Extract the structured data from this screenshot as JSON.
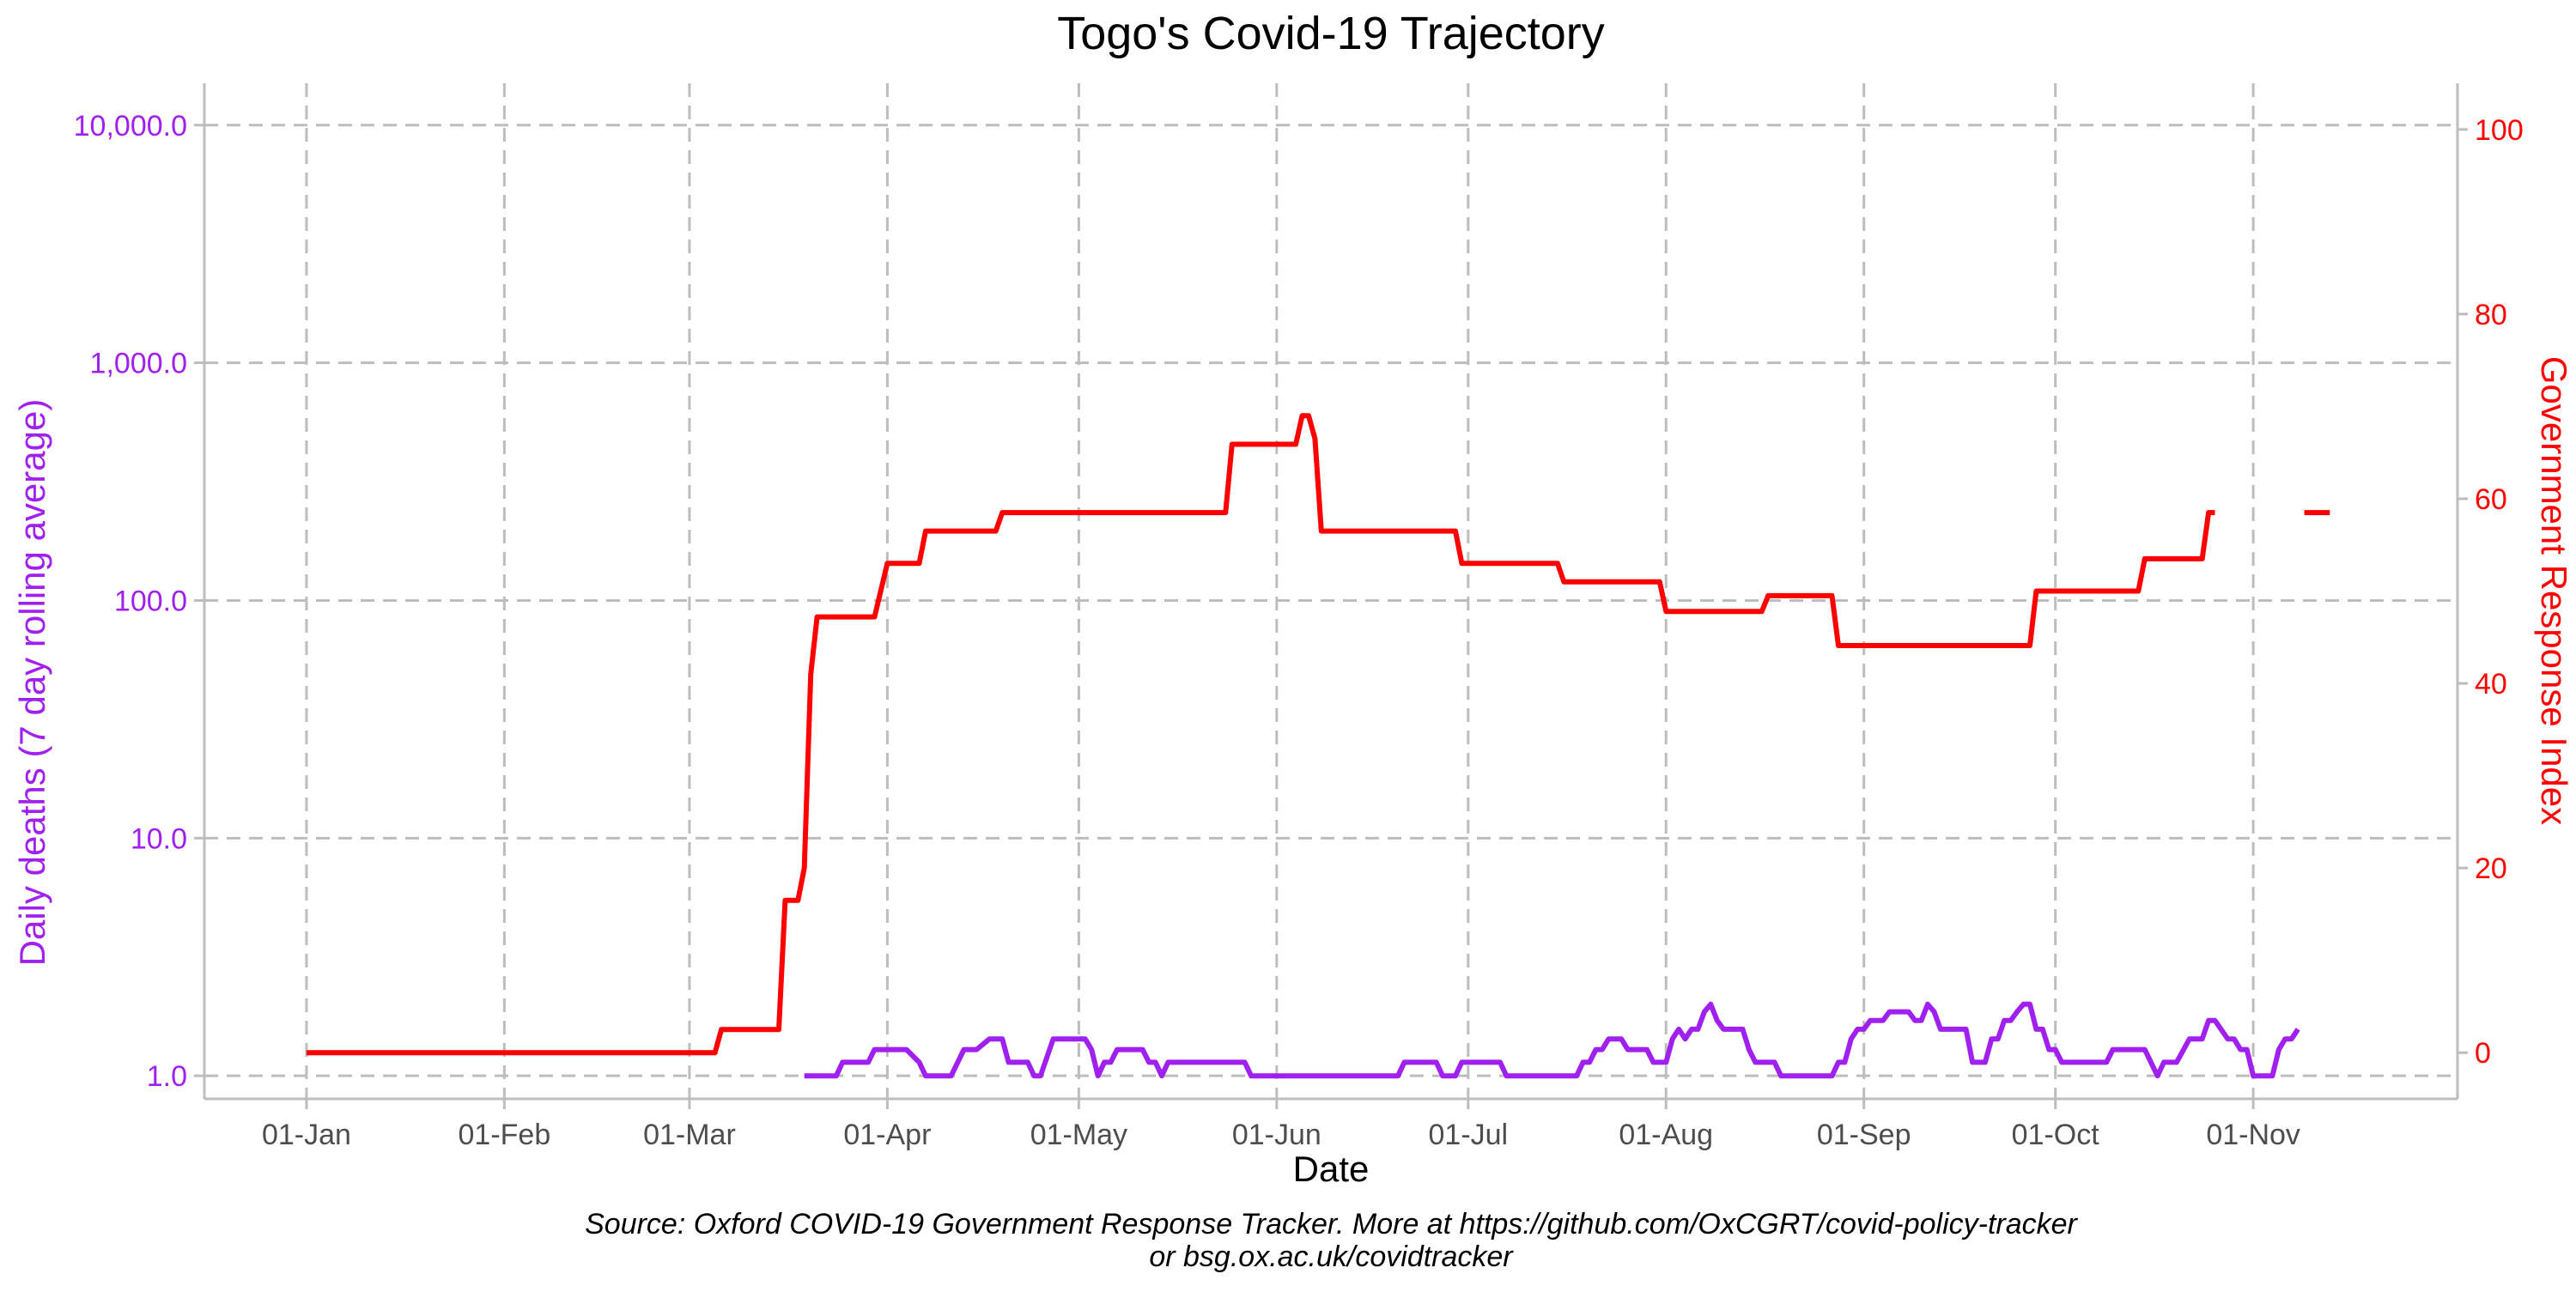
{
  "title": "Togo's Covid-19 Trajectory",
  "xlabel": "Date",
  "ylabel_left": "Daily deaths (7 day rolling average)",
  "ylabel_right": "Government Response Index",
  "caption_line1": "Source: Oxford COVID-19 Government Response Tracker. More at https://github.com/OxCGRT/covid-policy-tracker",
  "caption_line2": "or bsg.ox.ac.uk/covidtracker",
  "colors": {
    "deaths": "#a020f0",
    "stringency": "#ff0000",
    "grid": "#bdbdbd",
    "axis": "#bdbdbd"
  },
  "chart_data": {
    "type": "line",
    "title": "Togo's Covid-19 Trajectory",
    "xlabel": "Date",
    "x_ticks": [
      {
        "date": "2020-01-01",
        "label": "01-Jan"
      },
      {
        "date": "2020-02-01",
        "label": "01-Feb"
      },
      {
        "date": "2020-03-01",
        "label": "01-Mar"
      },
      {
        "date": "2020-04-01",
        "label": "01-Apr"
      },
      {
        "date": "2020-05-01",
        "label": "01-May"
      },
      {
        "date": "2020-06-01",
        "label": "01-Jun"
      },
      {
        "date": "2020-07-01",
        "label": "01-Jul"
      },
      {
        "date": "2020-08-01",
        "label": "01-Aug"
      },
      {
        "date": "2020-09-01",
        "label": "01-Sep"
      },
      {
        "date": "2020-10-01",
        "label": "01-Oct"
      },
      {
        "date": "2020-11-01",
        "label": "01-Nov"
      }
    ],
    "xlim": [
      "2019-12-16",
      "2020-12-03"
    ],
    "y_left": {
      "label": "Daily deaths (7 day rolling average)",
      "scale": "log",
      "lim": [
        0.8,
        15000
      ],
      "ticks": [
        {
          "value": 1,
          "label": "1.0"
        },
        {
          "value": 10,
          "label": "10.0"
        },
        {
          "value": 100,
          "label": "100.0"
        },
        {
          "value": 1000,
          "label": "1,000.0"
        },
        {
          "value": 10000,
          "label": "10,000.0"
        }
      ]
    },
    "y_right": {
      "label": "Government Response Index",
      "scale": "linear",
      "lim": [
        -5,
        105
      ],
      "ticks": [
        {
          "value": 0,
          "label": "0"
        },
        {
          "value": 20,
          "label": "20"
        },
        {
          "value": 40,
          "label": "40"
        },
        {
          "value": 60,
          "label": "60"
        },
        {
          "value": 80,
          "label": "80"
        },
        {
          "value": 100,
          "label": "100"
        }
      ]
    },
    "grid": true,
    "series": [
      {
        "axis": "right",
        "color": "#ff0000",
        "segments": [
          [
            [
              "2020-01-01",
              0
            ],
            [
              "2020-03-05",
              0
            ],
            [
              "2020-03-06",
              2.5
            ],
            [
              "2020-03-15",
              2.5
            ],
            [
              "2020-03-16",
              16.5
            ],
            [
              "2020-03-18",
              16.5
            ],
            [
              "2020-03-19",
              20
            ],
            [
              "2020-03-20",
              41
            ],
            [
              "2020-03-21",
              47.2
            ],
            [
              "2020-03-30",
              47.2
            ],
            [
              "2020-04-01",
              53
            ],
            [
              "2020-04-06",
              53
            ],
            [
              "2020-04-07",
              56.5
            ],
            [
              "2020-04-18",
              56.5
            ],
            [
              "2020-04-19",
              58.5
            ],
            [
              "2020-05-24",
              58.5
            ],
            [
              "2020-05-25",
              65.9
            ],
            [
              "2020-06-04",
              65.9
            ],
            [
              "2020-06-05",
              69
            ],
            [
              "2020-06-06",
              69
            ],
            [
              "2020-06-07",
              66.5
            ],
            [
              "2020-06-08",
              56.5
            ],
            [
              "2020-06-29",
              56.5
            ],
            [
              "2020-06-30",
              53
            ],
            [
              "2020-07-15",
              53
            ],
            [
              "2020-07-16",
              51
            ],
            [
              "2020-07-31",
              51
            ],
            [
              "2020-08-01",
              47.8
            ],
            [
              "2020-08-16",
              47.8
            ],
            [
              "2020-08-17",
              49.5
            ],
            [
              "2020-08-27",
              49.5
            ],
            [
              "2020-08-28",
              44.1
            ],
            [
              "2020-09-27",
              44.1
            ],
            [
              "2020-09-28",
              50
            ],
            [
              "2020-10-14",
              50
            ],
            [
              "2020-10-15",
              53.5
            ],
            [
              "2020-10-24",
              53.5
            ],
            [
              "2020-10-25",
              58.5
            ],
            [
              "2020-10-26",
              58.5
            ]
          ],
          [
            [
              "2020-11-09",
              58.5
            ],
            [
              "2020-11-13",
              58.5
            ]
          ]
        ]
      },
      {
        "axis": "left",
        "color": "#a020f0",
        "segments": [
          [
            [
              "2020-03-19",
              1.0
            ],
            [
              "2020-03-24",
              1.0
            ],
            [
              "2020-03-25",
              1.14
            ],
            [
              "2020-03-29",
              1.14
            ],
            [
              "2020-03-30",
              1.29
            ],
            [
              "2020-04-04",
              1.29
            ],
            [
              "2020-04-06",
              1.14
            ],
            [
              "2020-04-07",
              1.0
            ],
            [
              "2020-04-11",
              1.0
            ],
            [
              "2020-04-13",
              1.29
            ],
            [
              "2020-04-15",
              1.29
            ],
            [
              "2020-04-17",
              1.43
            ],
            [
              "2020-04-19",
              1.43
            ],
            [
              "2020-04-20",
              1.14
            ],
            [
              "2020-04-23",
              1.14
            ],
            [
              "2020-04-24",
              1.0
            ],
            [
              "2020-04-25",
              1.0
            ],
            [
              "2020-04-27",
              1.43
            ],
            [
              "2020-05-02",
              1.43
            ],
            [
              "2020-05-03",
              1.29
            ],
            [
              "2020-05-04",
              1.0
            ],
            [
              "2020-05-05",
              1.14
            ],
            [
              "2020-05-06",
              1.14
            ],
            [
              "2020-05-07",
              1.29
            ],
            [
              "2020-05-11",
              1.29
            ],
            [
              "2020-05-12",
              1.14
            ],
            [
              "2020-05-13",
              1.14
            ],
            [
              "2020-05-14",
              1.0
            ],
            [
              "2020-05-15",
              1.14
            ],
            [
              "2020-05-27",
              1.14
            ],
            [
              "2020-05-28",
              1.0
            ],
            [
              "2020-06-20",
              1.0
            ],
            [
              "2020-06-21",
              1.14
            ],
            [
              "2020-06-26",
              1.14
            ],
            [
              "2020-06-27",
              1.0
            ],
            [
              "2020-06-29",
              1.0
            ],
            [
              "2020-06-30",
              1.14
            ],
            [
              "2020-07-06",
              1.14
            ],
            [
              "2020-07-07",
              1.0
            ],
            [
              "2020-07-18",
              1.0
            ],
            [
              "2020-07-19",
              1.14
            ],
            [
              "2020-07-20",
              1.14
            ],
            [
              "2020-07-21",
              1.29
            ],
            [
              "2020-07-22",
              1.29
            ],
            [
              "2020-07-23",
              1.43
            ],
            [
              "2020-07-25",
              1.43
            ],
            [
              "2020-07-26",
              1.29
            ],
            [
              "2020-07-29",
              1.29
            ],
            [
              "2020-07-30",
              1.14
            ],
            [
              "2020-08-01",
              1.14
            ],
            [
              "2020-08-02",
              1.43
            ],
            [
              "2020-08-03",
              1.57
            ],
            [
              "2020-08-04",
              1.43
            ],
            [
              "2020-08-05",
              1.57
            ],
            [
              "2020-08-06",
              1.57
            ],
            [
              "2020-08-07",
              1.86
            ],
            [
              "2020-08-08",
              2.0
            ],
            [
              "2020-08-09",
              1.71
            ],
            [
              "2020-08-10",
              1.57
            ],
            [
              "2020-08-13",
              1.57
            ],
            [
              "2020-08-14",
              1.29
            ],
            [
              "2020-08-15",
              1.14
            ],
            [
              "2020-08-18",
              1.14
            ],
            [
              "2020-08-19",
              1.0
            ],
            [
              "2020-08-27",
              1.0
            ],
            [
              "2020-08-28",
              1.14
            ],
            [
              "2020-08-29",
              1.14
            ],
            [
              "2020-08-30",
              1.43
            ],
            [
              "2020-08-31",
              1.57
            ],
            [
              "2020-09-01",
              1.57
            ],
            [
              "2020-09-02",
              1.71
            ],
            [
              "2020-09-04",
              1.71
            ],
            [
              "2020-09-05",
              1.86
            ],
            [
              "2020-09-08",
              1.86
            ],
            [
              "2020-09-09",
              1.71
            ],
            [
              "2020-09-10",
              1.71
            ],
            [
              "2020-09-11",
              2.0
            ],
            [
              "2020-09-12",
              1.86
            ],
            [
              "2020-09-13",
              1.57
            ],
            [
              "2020-09-17",
              1.57
            ],
            [
              "2020-09-18",
              1.14
            ],
            [
              "2020-09-20",
              1.14
            ],
            [
              "2020-09-21",
              1.43
            ],
            [
              "2020-09-22",
              1.43
            ],
            [
              "2020-09-23",
              1.71
            ],
            [
              "2020-09-24",
              1.71
            ],
            [
              "2020-09-25",
              1.86
            ],
            [
              "2020-09-26",
              2.0
            ],
            [
              "2020-09-27",
              2.0
            ],
            [
              "2020-09-28",
              1.57
            ],
            [
              "2020-09-29",
              1.57
            ],
            [
              "2020-09-30",
              1.29
            ],
            [
              "2020-10-01",
              1.29
            ],
            [
              "2020-10-02",
              1.14
            ],
            [
              "2020-10-09",
              1.14
            ],
            [
              "2020-10-10",
              1.29
            ],
            [
              "2020-10-15",
              1.29
            ],
            [
              "2020-10-17",
              1.0
            ],
            [
              "2020-10-18",
              1.14
            ],
            [
              "2020-10-20",
              1.14
            ],
            [
              "2020-10-22",
              1.43
            ],
            [
              "2020-10-24",
              1.43
            ],
            [
              "2020-10-25",
              1.71
            ],
            [
              "2020-10-26",
              1.71
            ],
            [
              "2020-10-28",
              1.43
            ],
            [
              "2020-10-29",
              1.43
            ],
            [
              "2020-10-30",
              1.29
            ],
            [
              "2020-10-31",
              1.29
            ],
            [
              "2020-11-01",
              1.0
            ],
            [
              "2020-11-04",
              1.0
            ],
            [
              "2020-11-05",
              1.29
            ],
            [
              "2020-11-06",
              1.43
            ],
            [
              "2020-11-07",
              1.43
            ],
            [
              "2020-11-08",
              1.57
            ]
          ]
        ]
      }
    ]
  }
}
